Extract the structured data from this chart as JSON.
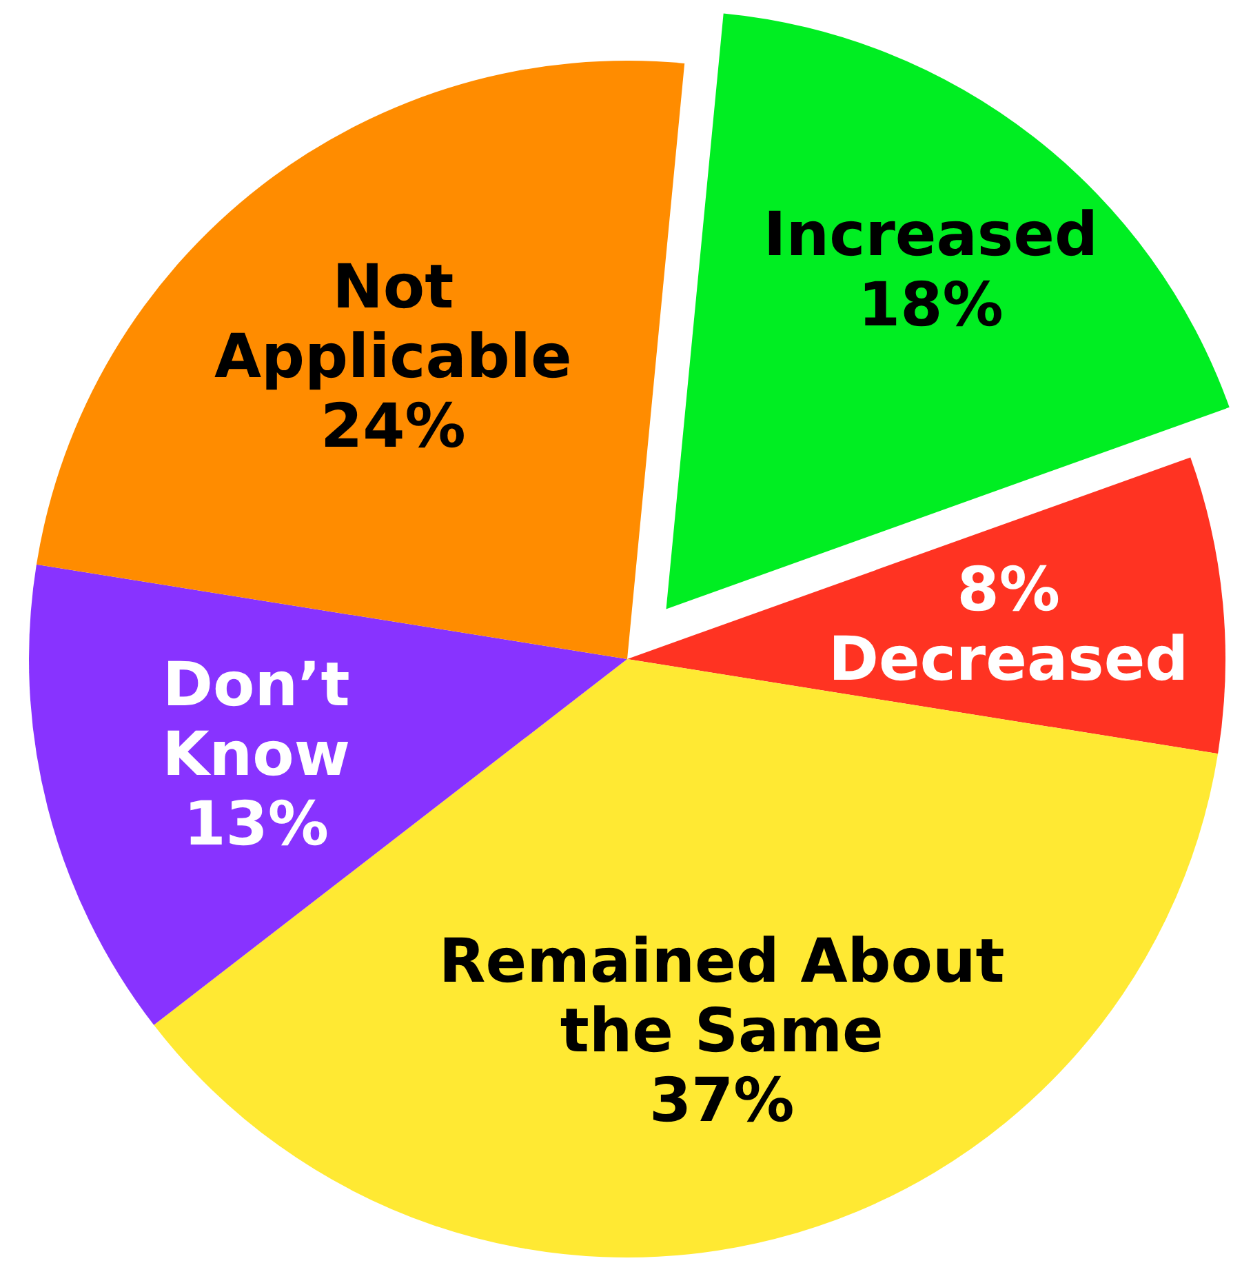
{
  "chart_data": {
    "type": "pie",
    "categories": [
      "Increased",
      "Decreased",
      "Remained About the Same",
      "Don’t Know",
      "Not Applicable"
    ],
    "values": [
      18,
      8,
      37,
      13,
      24
    ],
    "value_labels": [
      "18%",
      "8%",
      "37%",
      "13%",
      "24%"
    ],
    "colors": [
      "#00ee22",
      "#ff3322",
      "#ffe933",
      "#8833ff",
      "#ff8c00"
    ]
  }
}
